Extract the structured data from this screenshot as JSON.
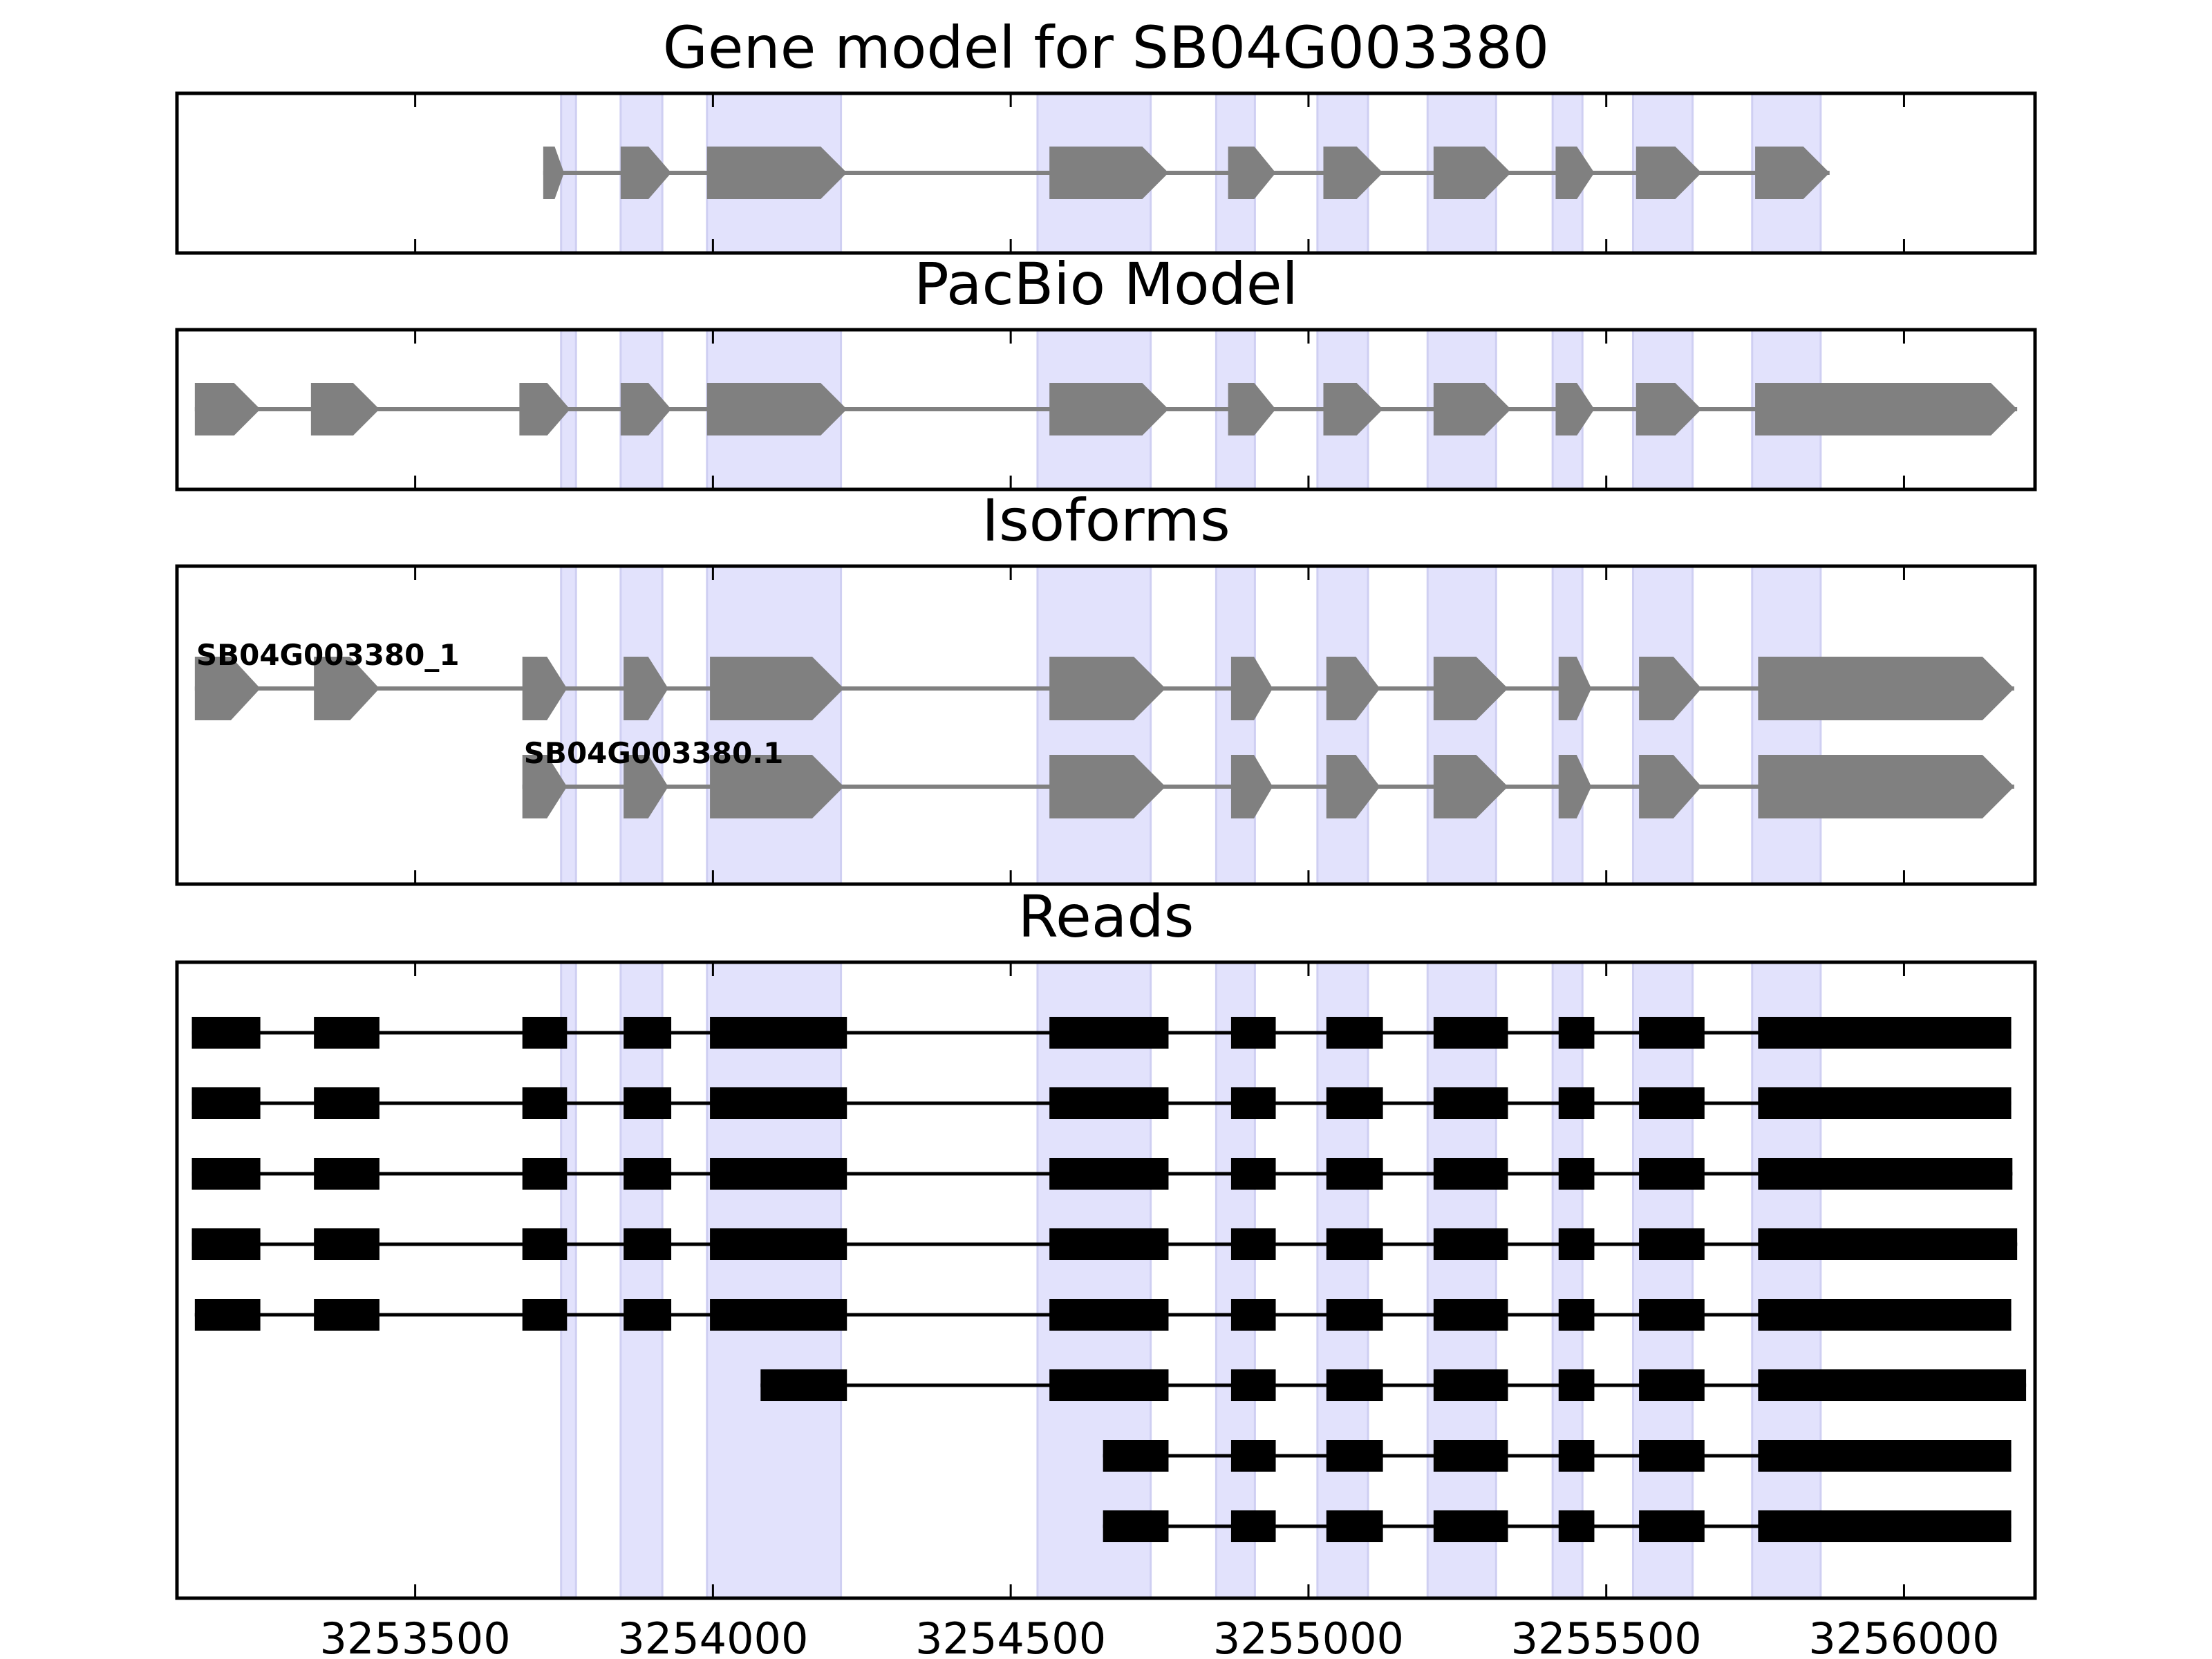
{
  "chart_data": {
    "type": "gene-structure",
    "x_range": [
      3253100,
      3256220
    ],
    "x_ticks": [
      3253500,
      3254000,
      3254500,
      3255000,
      3255500,
      3256000
    ],
    "x_tick_labels": [
      "3253500",
      "3254000",
      "3254500",
      "3255000",
      "3255500",
      "3256000"
    ],
    "highlight_regions": [
      [
        3253745,
        3253770
      ],
      [
        3253845,
        3253915
      ],
      [
        3253990,
        3254215
      ],
      [
        3254545,
        3254735
      ],
      [
        3254845,
        3254910
      ],
      [
        3255015,
        3255100
      ],
      [
        3255200,
        3255315
      ],
      [
        3255410,
        3255460
      ],
      [
        3255545,
        3255645
      ],
      [
        3255745,
        3255860
      ]
    ],
    "panels": [
      {
        "title": "Gene model for SB04G003380",
        "kind": "gene",
        "tracks": [
          {
            "label": "",
            "exons": [
              [
                3253715,
                3253750
              ],
              [
                3253845,
                3253930
              ],
              [
                3253990,
                3254225
              ],
              [
                3254565,
                3254765
              ],
              [
                3254865,
                3254945
              ],
              [
                3255025,
                3255125
              ],
              [
                3255210,
                3255340
              ],
              [
                3255415,
                3255480
              ],
              [
                3255550,
                3255660
              ],
              [
                3255750,
                3255875
              ]
            ]
          }
        ]
      },
      {
        "title": "PacBio Model",
        "kind": "gene",
        "tracks": [
          {
            "label": "",
            "exons": [
              [
                3253130,
                3253240
              ],
              [
                3253325,
                3253440
              ],
              [
                3253675,
                3253760
              ],
              [
                3253845,
                3253930
              ],
              [
                3253990,
                3254225
              ],
              [
                3254565,
                3254765
              ],
              [
                3254865,
                3254945
              ],
              [
                3255025,
                3255125
              ],
              [
                3255210,
                3255340
              ],
              [
                3255415,
                3255480
              ],
              [
                3255550,
                3255660
              ],
              [
                3255750,
                3256190
              ]
            ]
          }
        ]
      },
      {
        "title": "Isoforms",
        "kind": "gene",
        "tracks": [
          {
            "label": "SB04G003380_1",
            "exons": [
              [
                3253130,
                3253240
              ],
              [
                3253330,
                3253440
              ],
              [
                3253680,
                3253755
              ],
              [
                3253850,
                3253925
              ],
              [
                3253995,
                3254220
              ],
              [
                3254565,
                3254760
              ],
              [
                3254870,
                3254940
              ],
              [
                3255030,
                3255120
              ],
              [
                3255210,
                3255335
              ],
              [
                3255420,
                3255475
              ],
              [
                3255555,
                3255660
              ],
              [
                3255755,
                3256185
              ]
            ]
          },
          {
            "label": "SB04G003380.1",
            "exons": [
              [
                3253680,
                3253755
              ],
              [
                3253850,
                3253925
              ],
              [
                3253995,
                3254220
              ],
              [
                3254565,
                3254760
              ],
              [
                3254870,
                3254940
              ],
              [
                3255030,
                3255120
              ],
              [
                3255210,
                3255335
              ],
              [
                3255420,
                3255475
              ],
              [
                3255555,
                3255660
              ],
              [
                3255755,
                3256185
              ]
            ]
          }
        ]
      },
      {
        "title": "Reads",
        "kind": "reads",
        "tracks": [
          {
            "label": "",
            "exons": [
              [
                3253125,
                3253240
              ],
              [
                3253330,
                3253440
              ],
              [
                3253680,
                3253755
              ],
              [
                3253850,
                3253930
              ],
              [
                3253995,
                3254225
              ],
              [
                3254565,
                3254765
              ],
              [
                3254870,
                3254945
              ],
              [
                3255030,
                3255125
              ],
              [
                3255210,
                3255335
              ],
              [
                3255420,
                3255480
              ],
              [
                3255555,
                3255665
              ],
              [
                3255755,
                3256180
              ]
            ]
          },
          {
            "label": "",
            "exons": [
              [
                3253125,
                3253240
              ],
              [
                3253330,
                3253440
              ],
              [
                3253680,
                3253755
              ],
              [
                3253850,
                3253930
              ],
              [
                3253995,
                3254225
              ],
              [
                3254565,
                3254765
              ],
              [
                3254870,
                3254945
              ],
              [
                3255030,
                3255125
              ],
              [
                3255210,
                3255335
              ],
              [
                3255420,
                3255480
              ],
              [
                3255555,
                3255665
              ],
              [
                3255755,
                3256180
              ]
            ]
          },
          {
            "label": "",
            "exons": [
              [
                3253125,
                3253240
              ],
              [
                3253330,
                3253440
              ],
              [
                3253680,
                3253755
              ],
              [
                3253850,
                3253930
              ],
              [
                3253995,
                3254225
              ],
              [
                3254565,
                3254765
              ],
              [
                3254870,
                3254945
              ],
              [
                3255030,
                3255125
              ],
              [
                3255210,
                3255335
              ],
              [
                3255420,
                3255480
              ],
              [
                3255555,
                3255665
              ],
              [
                3255755,
                3256182
              ]
            ]
          },
          {
            "label": "",
            "exons": [
              [
                3253125,
                3253240
              ],
              [
                3253330,
                3253440
              ],
              [
                3253680,
                3253755
              ],
              [
                3253850,
                3253930
              ],
              [
                3253995,
                3254225
              ],
              [
                3254565,
                3254765
              ],
              [
                3254870,
                3254945
              ],
              [
                3255030,
                3255125
              ],
              [
                3255210,
                3255335
              ],
              [
                3255420,
                3255480
              ],
              [
                3255555,
                3255665
              ],
              [
                3255755,
                3256190
              ]
            ]
          },
          {
            "label": "",
            "exons": [
              [
                3253130,
                3253240
              ],
              [
                3253330,
                3253440
              ],
              [
                3253680,
                3253755
              ],
              [
                3253850,
                3253930
              ],
              [
                3253995,
                3254225
              ],
              [
                3254565,
                3254765
              ],
              [
                3254870,
                3254945
              ],
              [
                3255030,
                3255125
              ],
              [
                3255210,
                3255335
              ],
              [
                3255420,
                3255480
              ],
              [
                3255555,
                3255665
              ],
              [
                3255755,
                3256180
              ]
            ]
          },
          {
            "label": "",
            "exons": [
              [
                3254080,
                3254225
              ],
              [
                3254565,
                3254765
              ],
              [
                3254870,
                3254945
              ],
              [
                3255030,
                3255125
              ],
              [
                3255210,
                3255335
              ],
              [
                3255420,
                3255480
              ],
              [
                3255555,
                3255665
              ],
              [
                3255755,
                3256205
              ]
            ]
          },
          {
            "label": "",
            "exons": [
              [
                3254655,
                3254765
              ],
              [
                3254870,
                3254945
              ],
              [
                3255030,
                3255125
              ],
              [
                3255210,
                3255335
              ],
              [
                3255420,
                3255480
              ],
              [
                3255555,
                3255665
              ],
              [
                3255755,
                3256180
              ]
            ]
          },
          {
            "label": "",
            "exons": [
              [
                3254655,
                3254765
              ],
              [
                3254870,
                3254945
              ],
              [
                3255030,
                3255125
              ],
              [
                3255210,
                3255335
              ],
              [
                3255420,
                3255480
              ],
              [
                3255555,
                3255665
              ],
              [
                3255755,
                3256180
              ]
            ]
          }
        ]
      }
    ]
  }
}
